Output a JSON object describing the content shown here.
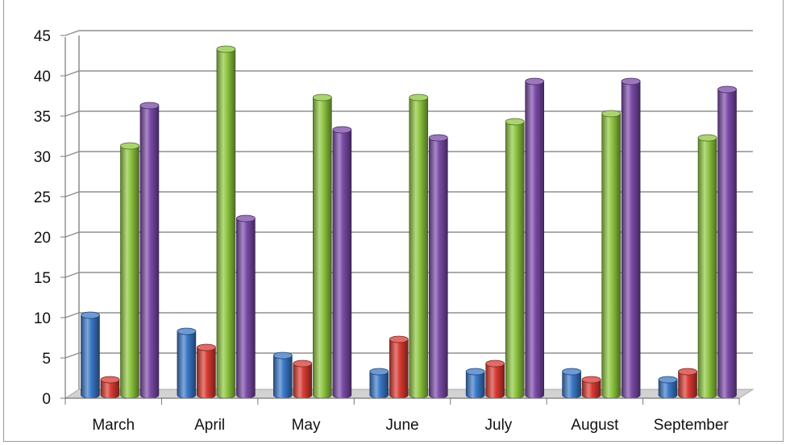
{
  "chart_data": {
    "type": "bar",
    "title": "",
    "xlabel": "",
    "ylabel": "",
    "categories": [
      "March",
      "April",
      "May",
      "June",
      "July",
      "August",
      "September"
    ],
    "ylim": [
      0,
      45
    ],
    "yticks": [
      0,
      5,
      10,
      15,
      20,
      25,
      30,
      35,
      40,
      45
    ],
    "grid": true,
    "legend": "none",
    "style": "3d-cylinder",
    "series": [
      {
        "color": "#3a78c8",
        "values": [
          10,
          8,
          5,
          3,
          3,
          3,
          2
        ]
      },
      {
        "color": "#d93a32",
        "values": [
          2,
          6,
          4,
          7,
          4,
          2,
          3
        ]
      },
      {
        "color": "#8ec63f",
        "values": [
          31,
          43,
          37,
          37,
          34,
          35,
          32
        ]
      },
      {
        "color": "#7a4aa8",
        "values": [
          36,
          22,
          33,
          32,
          39,
          39,
          38
        ]
      }
    ]
  }
}
